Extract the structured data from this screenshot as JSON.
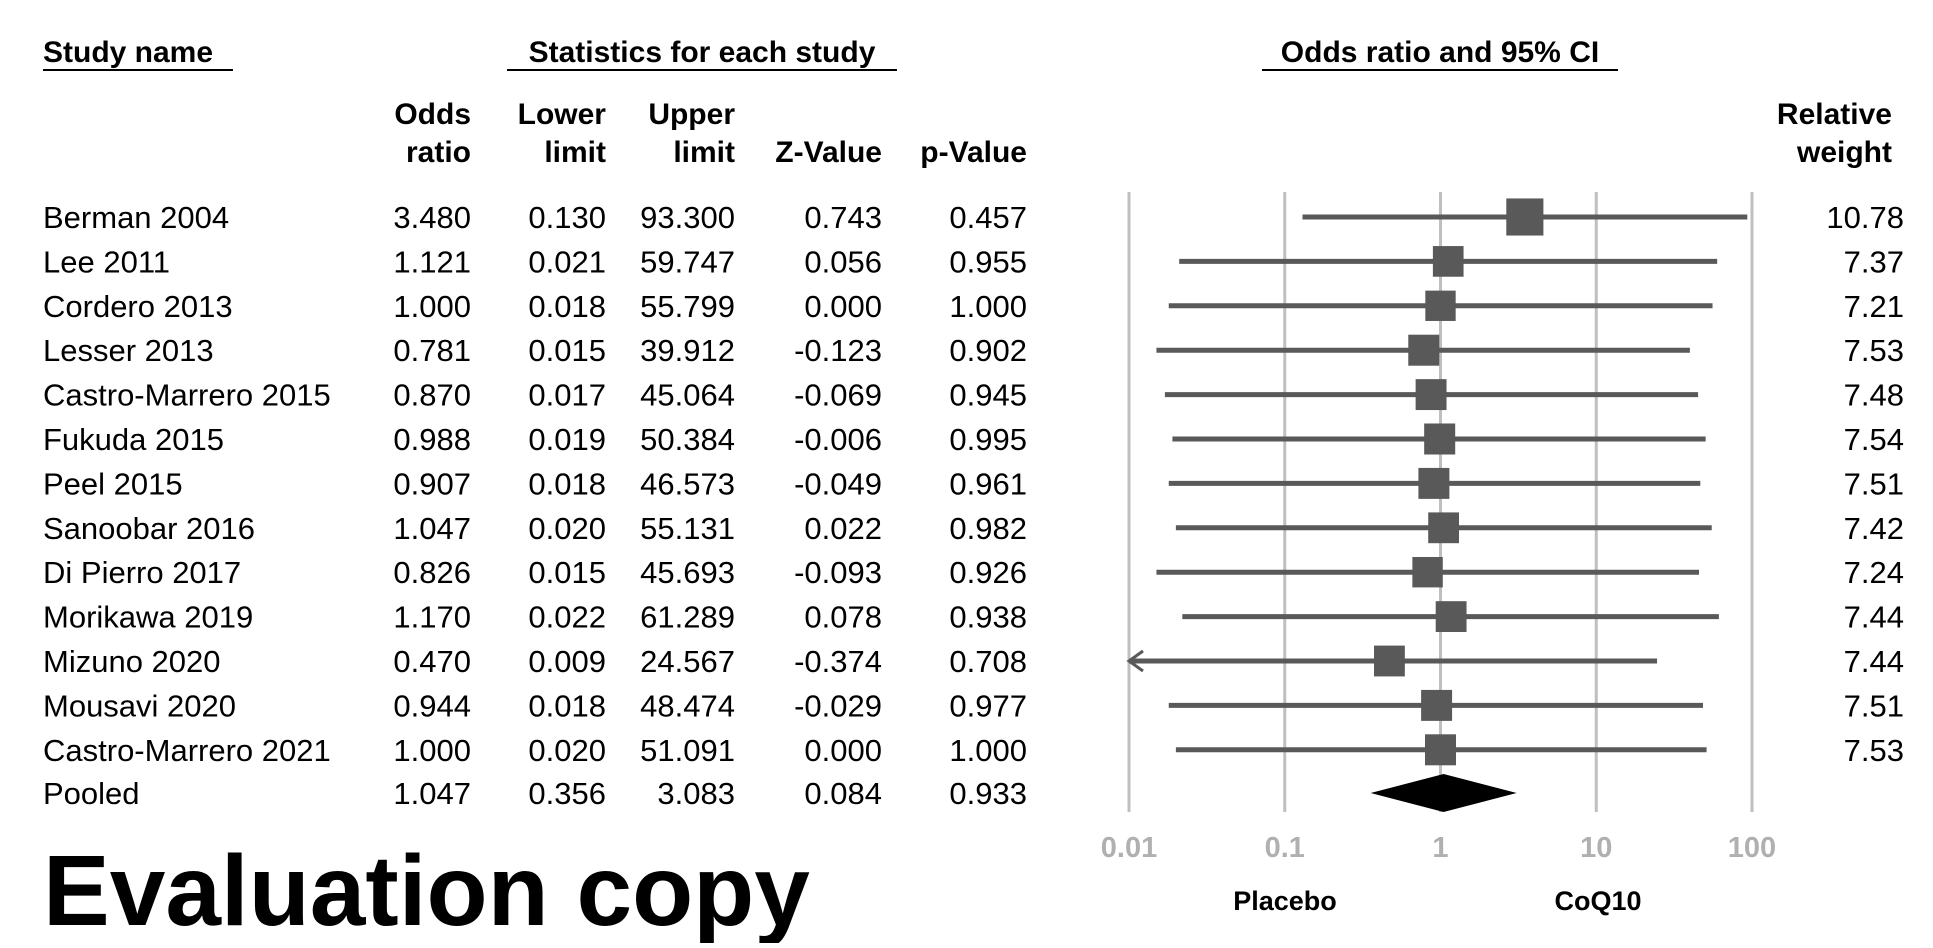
{
  "chart_data": {
    "type": "forest",
    "headers": {
      "study_name": "Study name",
      "statistics": "Statistics for each study",
      "plot_title": "Odds ratio and 95% CI",
      "columns": [
        [
          "Odds",
          "ratio"
        ],
        [
          "Lower",
          "limit"
        ],
        [
          "Upper",
          "limit"
        ],
        [
          "",
          "Z-Value"
        ],
        [
          "",
          "p-Value"
        ]
      ],
      "weight": [
        "Relative",
        "weight"
      ]
    },
    "studies": [
      {
        "name": "Berman 2004",
        "or": "3.480",
        "lower": "0.130",
        "upper": "93.300",
        "z": "0.743",
        "p": "0.457",
        "weight": "10.78"
      },
      {
        "name": "Lee 2011",
        "or": "1.121",
        "lower": "0.021",
        "upper": "59.747",
        "z": "0.056",
        "p": "0.955",
        "weight": "7.37"
      },
      {
        "name": "Cordero 2013",
        "or": "1.000",
        "lower": "0.018",
        "upper": "55.799",
        "z": "0.000",
        "p": "1.000",
        "weight": "7.21"
      },
      {
        "name": "Lesser 2013",
        "or": "0.781",
        "lower": "0.015",
        "upper": "39.912",
        "z": "-0.123",
        "p": "0.902",
        "weight": "7.53"
      },
      {
        "name": "Castro-Marrero 2015",
        "or": "0.870",
        "lower": "0.017",
        "upper": "45.064",
        "z": "-0.069",
        "p": "0.945",
        "weight": "7.48"
      },
      {
        "name": "Fukuda 2015",
        "or": "0.988",
        "lower": "0.019",
        "upper": "50.384",
        "z": "-0.006",
        "p": "0.995",
        "weight": "7.54"
      },
      {
        "name": "Peel 2015",
        "or": "0.907",
        "lower": "0.018",
        "upper": "46.573",
        "z": "-0.049",
        "p": "0.961",
        "weight": "7.51"
      },
      {
        "name": "Sanoobar 2016",
        "or": "1.047",
        "lower": "0.020",
        "upper": "55.131",
        "z": "0.022",
        "p": "0.982",
        "weight": "7.42"
      },
      {
        "name": "Di Pierro 2017",
        "or": "0.826",
        "lower": "0.015",
        "upper": "45.693",
        "z": "-0.093",
        "p": "0.926",
        "weight": "7.24"
      },
      {
        "name": "Morikawa 2019",
        "or": "1.170",
        "lower": "0.022",
        "upper": "61.289",
        "z": "0.078",
        "p": "0.938",
        "weight": "7.44"
      },
      {
        "name": "Mizuno 2020",
        "or": "0.470",
        "lower": "0.009",
        "upper": "24.567",
        "z": "-0.374",
        "p": "0.708",
        "weight": "7.44"
      },
      {
        "name": "Mousavi 2020",
        "or": "0.944",
        "lower": "0.018",
        "upper": "48.474",
        "z": "-0.029",
        "p": "0.977",
        "weight": "7.51"
      },
      {
        "name": "Castro-Marrero 2021",
        "or": "1.000",
        "lower": "0.020",
        "upper": "51.091",
        "z": "0.000",
        "p": "1.000",
        "weight": "7.53"
      }
    ],
    "pooled": {
      "name": "Pooled",
      "or": "1.047",
      "lower": "0.356",
      "upper": "3.083",
      "z": "0.084",
      "p": "0.933"
    },
    "x_axis": {
      "scale": "log",
      "range": [
        0.01,
        100
      ],
      "ticks": [
        "0.01",
        "0.1",
        "1",
        "10",
        "100"
      ]
    },
    "grid": true,
    "favours_left": "Placebo",
    "favours_right": "CoQ10",
    "colors": {
      "marker": "#595959",
      "line": "#595959",
      "grid": "#bfbfbf",
      "diamond": "#000000",
      "tick": "#b0b0b0"
    }
  },
  "watermark": "Evaluation copy"
}
